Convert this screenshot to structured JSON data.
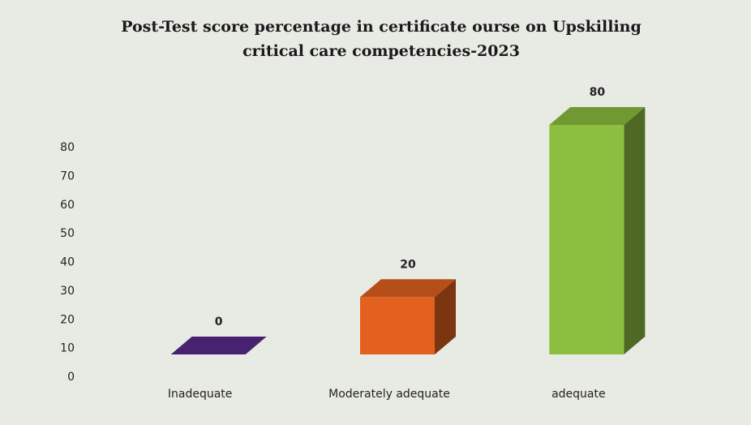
{
  "chart_data": {
    "type": "bar3d",
    "title": "Post-Test score percentage in certificate ourse on Upskilling critical care competencies-2023",
    "categories": [
      "Inadequate",
      "Moderately adequate",
      "adequate"
    ],
    "values": [
      0,
      20,
      80
    ],
    "colors": [
      "#5a2a8c",
      "#e2611e",
      "#8cbf3f"
    ],
    "ylim": [
      0,
      80
    ],
    "yticks": [
      0,
      10,
      20,
      30,
      40,
      50,
      60,
      70,
      80
    ],
    "grid": false
  }
}
